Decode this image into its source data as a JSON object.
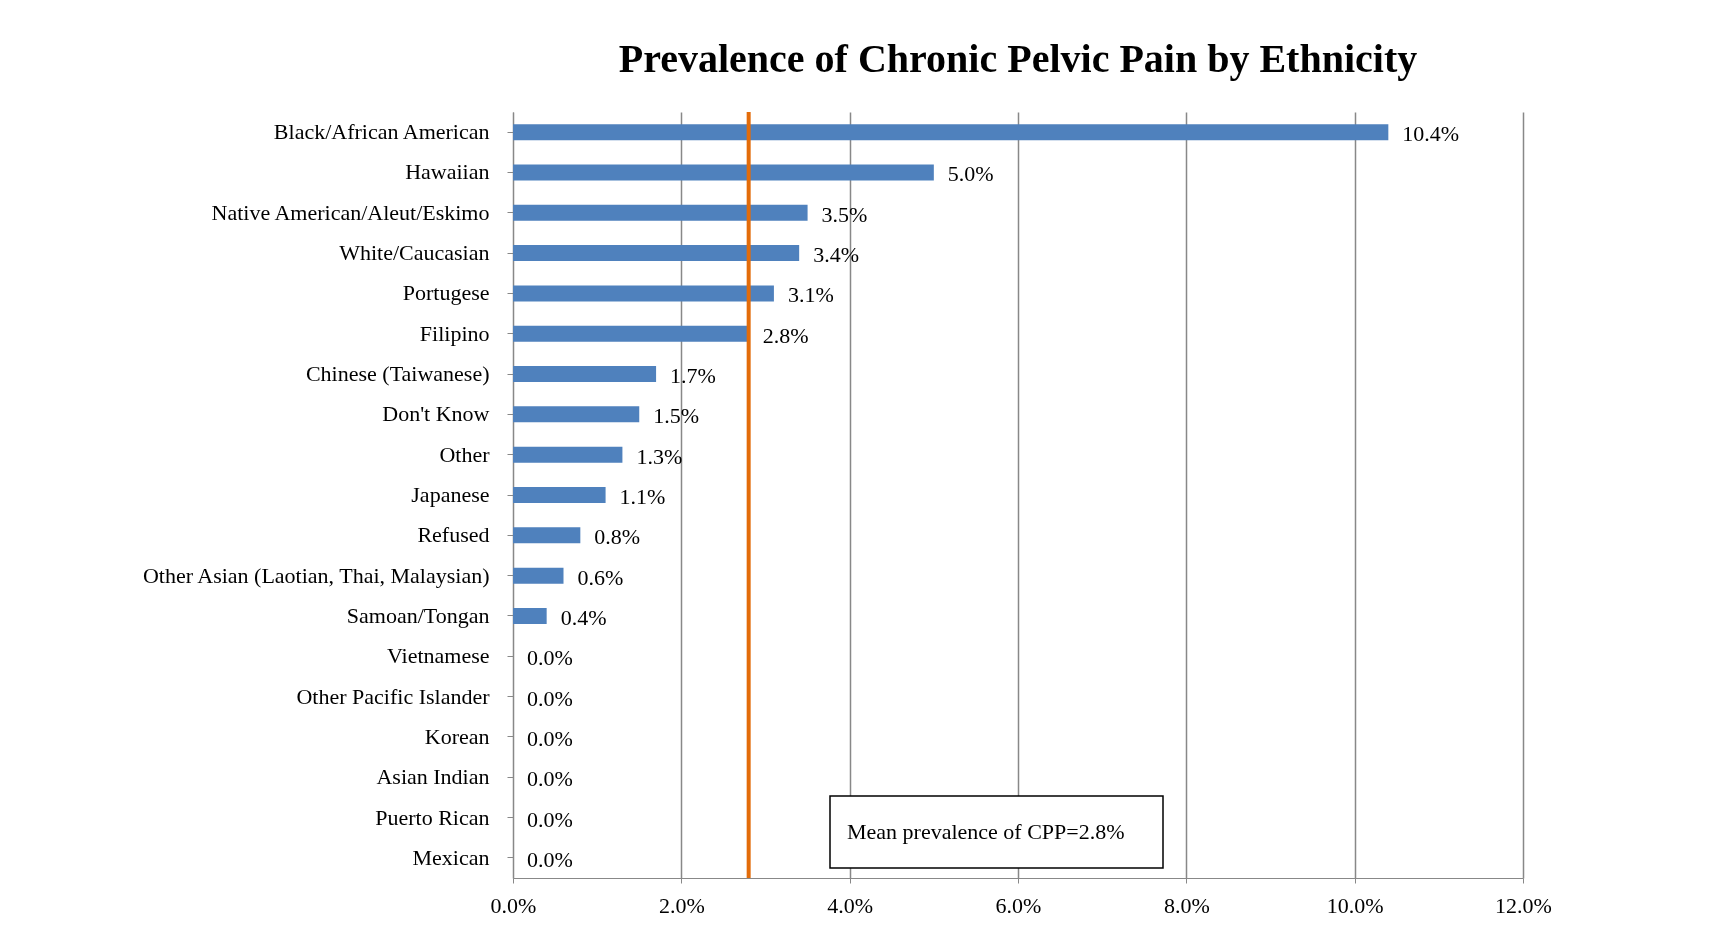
{
  "chart_data": {
    "type": "bar",
    "orientation": "horizontal",
    "title": "Prevalence of Chronic Pelvic Pain by Ethnicity",
    "categories": [
      "Black/African American",
      "Hawaiian",
      "Native American/Aleut/Eskimo",
      "White/Caucasian",
      "Portugese",
      "Filipino",
      "Chinese (Taiwanese)",
      "Don't Know",
      "Other",
      "Japanese",
      "Refused",
      "Other Asian (Laotian, Thai, Malaysian)",
      "Samoan/Tongan",
      "Vietnamese",
      "Other Pacific Islander",
      "Korean",
      "Asian Indian",
      "Puerto Rican",
      "Mexican"
    ],
    "values": [
      10.4,
      5.0,
      3.5,
      3.4,
      3.1,
      2.8,
      1.7,
      1.5,
      1.3,
      1.1,
      0.8,
      0.6,
      0.4,
      0.0,
      0.0,
      0.0,
      0.0,
      0.0,
      0.0
    ],
    "value_labels": [
      "10.4%",
      "5.0%",
      "3.5%",
      "3.4%",
      "3.1%",
      "2.8%",
      "1.7%",
      "1.5%",
      "1.3%",
      "1.1%",
      "0.8%",
      "0.6%",
      "0.4%",
      "0.0%",
      "0.0%",
      "0.0%",
      "0.0%",
      "0.0%",
      "0.0%"
    ],
    "color": "#4f81bd",
    "xlim": [
      0,
      12
    ],
    "xticks": [
      {
        "value": 0,
        "label": "0.0%"
      },
      {
        "value": 2,
        "label": "2.0%"
      },
      {
        "value": 4,
        "label": "4.0%"
      },
      {
        "value": 6,
        "label": "6.0%"
      },
      {
        "value": 8,
        "label": "8.0%"
      },
      {
        "value": 10,
        "label": "10.0%"
      },
      {
        "value": 12,
        "label": "12.0%"
      }
    ],
    "grid": "x",
    "ref_lines": [
      {
        "axis": "x",
        "value": 2.8,
        "color": "#e36c0a"
      }
    ],
    "annotations": [
      "Mean prevalence of CPP=2.8%"
    ]
  }
}
